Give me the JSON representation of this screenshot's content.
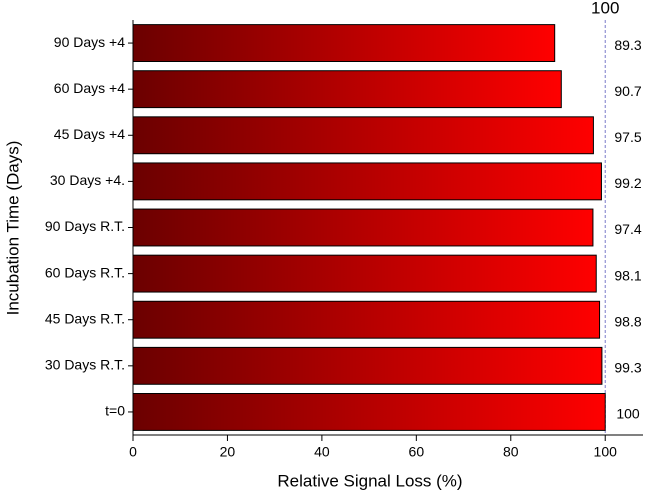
{
  "chart_data": {
    "type": "barh",
    "xlabel": "Relative Signal Loss (%)",
    "ylabel": "Incubation Time (Days)",
    "categories": [
      "90 Days +4",
      "60 Days +4",
      "45 Days +4",
      "30 Days +4.",
      "90 Days R.T.",
      "60 Days R.T.",
      "45 Days R.T.",
      "30 Days R.T.",
      "t=0"
    ],
    "values": [
      89.3,
      90.7,
      97.5,
      99.2,
      97.4,
      98.1,
      98.8,
      99.3,
      100
    ],
    "color_start": "#6b0000",
    "color_end": "#ff0000",
    "xlim": [
      0,
      108
    ],
    "xticks": [
      0,
      20,
      40,
      60,
      80,
      100
    ],
    "reference_line": 100
  }
}
